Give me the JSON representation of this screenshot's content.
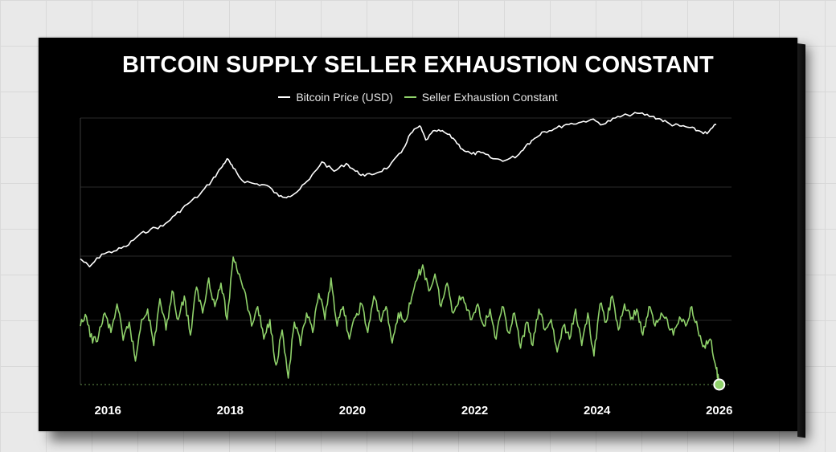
{
  "chart_data": {
    "type": "line",
    "title": "BITCOIN SUPPLY SELLER EXHAUSTION CONSTANT",
    "xlabel": "",
    "ylabel": "",
    "x_ticks": [
      "2016",
      "2018",
      "2020",
      "2022",
      "2024",
      "2026"
    ],
    "xlim": [
      2015.55,
      2026.2
    ],
    "grid": true,
    "legend": "top-center",
    "series": [
      {
        "name": "Bitcoin Price (USD)",
        "color": "#ffffff",
        "x": [
          2015.55,
          2015.7,
          2015.9,
          2016.1,
          2016.3,
          2016.5,
          2016.7,
          2016.9,
          2017.1,
          2017.3,
          2017.5,
          2017.7,
          2017.85,
          2017.95,
          2018.05,
          2018.2,
          2018.4,
          2018.6,
          2018.8,
          2018.95,
          2019.1,
          2019.3,
          2019.5,
          2019.7,
          2019.9,
          2020.05,
          2020.2,
          2020.4,
          2020.6,
          2020.8,
          2020.95,
          2021.1,
          2021.2,
          2021.35,
          2021.5,
          2021.65,
          2021.8,
          2021.95,
          2022.1,
          2022.3,
          2022.5,
          2022.7,
          2022.85,
          2022.95,
          2023.1,
          2023.3,
          2023.5,
          2023.7,
          2023.9,
          2024.1,
          2024.3,
          2024.5,
          2024.7,
          2024.9,
          2025.05,
          2025.2,
          2025.35,
          2025.5,
          2025.65,
          2025.8,
          2025.95
        ],
        "values": [
          0.1,
          0.05,
          0.13,
          0.15,
          0.18,
          0.25,
          0.29,
          0.31,
          0.38,
          0.45,
          0.51,
          0.6,
          0.68,
          0.74,
          0.68,
          0.6,
          0.58,
          0.57,
          0.5,
          0.5,
          0.53,
          0.61,
          0.72,
          0.66,
          0.71,
          0.66,
          0.63,
          0.65,
          0.69,
          0.78,
          0.9,
          0.95,
          0.86,
          0.92,
          0.91,
          0.87,
          0.8,
          0.77,
          0.78,
          0.74,
          0.73,
          0.76,
          0.83,
          0.86,
          0.91,
          0.93,
          0.96,
          0.97,
          0.99,
          0.96,
          1.0,
          1.02,
          1.03,
          1.01,
          0.99,
          0.96,
          0.95,
          0.94,
          0.92,
          0.9,
          0.96
        ]
      },
      {
        "name": "Seller Exhaustion Constant",
        "color": "#8fd16a",
        "x": [
          2015.55,
          2015.65,
          2015.75,
          2015.85,
          2015.95,
          2016.05,
          2016.15,
          2016.25,
          2016.35,
          2016.45,
          2016.55,
          2016.65,
          2016.75,
          2016.85,
          2016.95,
          2017.05,
          2017.15,
          2017.25,
          2017.35,
          2017.45,
          2017.55,
          2017.65,
          2017.75,
          2017.85,
          2017.95,
          2018.05,
          2018.15,
          2018.25,
          2018.35,
          2018.45,
          2018.55,
          2018.65,
          2018.75,
          2018.85,
          2018.95,
          2019.05,
          2019.15,
          2019.25,
          2019.35,
          2019.45,
          2019.55,
          2019.65,
          2019.75,
          2019.85,
          2019.95,
          2020.05,
          2020.15,
          2020.25,
          2020.35,
          2020.45,
          2020.55,
          2020.65,
          2020.75,
          2020.85,
          2020.95,
          2021.05,
          2021.15,
          2021.25,
          2021.35,
          2021.45,
          2021.55,
          2021.65,
          2021.75,
          2021.85,
          2021.95,
          2022.05,
          2022.15,
          2022.25,
          2022.35,
          2022.45,
          2022.55,
          2022.65,
          2022.75,
          2022.85,
          2022.95,
          2023.05,
          2023.15,
          2023.25,
          2023.35,
          2023.45,
          2023.55,
          2023.65,
          2023.75,
          2023.85,
          2023.95,
          2024.05,
          2024.15,
          2024.25,
          2024.35,
          2024.45,
          2024.55,
          2024.65,
          2024.75,
          2024.85,
          2024.95,
          2025.05,
          2025.15,
          2025.25,
          2025.35,
          2025.45,
          2025.55,
          2025.65,
          2025.75,
          2025.85,
          2025.95,
          2026.0
        ],
        "values": [
          0.45,
          0.52,
          0.32,
          0.38,
          0.55,
          0.4,
          0.62,
          0.34,
          0.48,
          0.18,
          0.5,
          0.58,
          0.3,
          0.66,
          0.42,
          0.72,
          0.5,
          0.68,
          0.38,
          0.75,
          0.55,
          0.82,
          0.6,
          0.78,
          0.5,
          0.98,
          0.85,
          0.7,
          0.45,
          0.6,
          0.35,
          0.5,
          0.15,
          0.42,
          0.05,
          0.48,
          0.3,
          0.55,
          0.4,
          0.7,
          0.5,
          0.82,
          0.45,
          0.6,
          0.35,
          0.52,
          0.62,
          0.4,
          0.68,
          0.5,
          0.6,
          0.32,
          0.55,
          0.48,
          0.62,
          0.8,
          0.92,
          0.72,
          0.85,
          0.6,
          0.78,
          0.55,
          0.68,
          0.62,
          0.5,
          0.62,
          0.45,
          0.58,
          0.35,
          0.6,
          0.4,
          0.55,
          0.28,
          0.48,
          0.3,
          0.58,
          0.42,
          0.5,
          0.25,
          0.45,
          0.35,
          0.58,
          0.3,
          0.55,
          0.22,
          0.62,
          0.48,
          0.68,
          0.42,
          0.62,
          0.5,
          0.58,
          0.38,
          0.6,
          0.45,
          0.55,
          0.5,
          0.38,
          0.52,
          0.45,
          0.6,
          0.42,
          0.3,
          0.35,
          0.12,
          0.0
        ]
      }
    ]
  }
}
